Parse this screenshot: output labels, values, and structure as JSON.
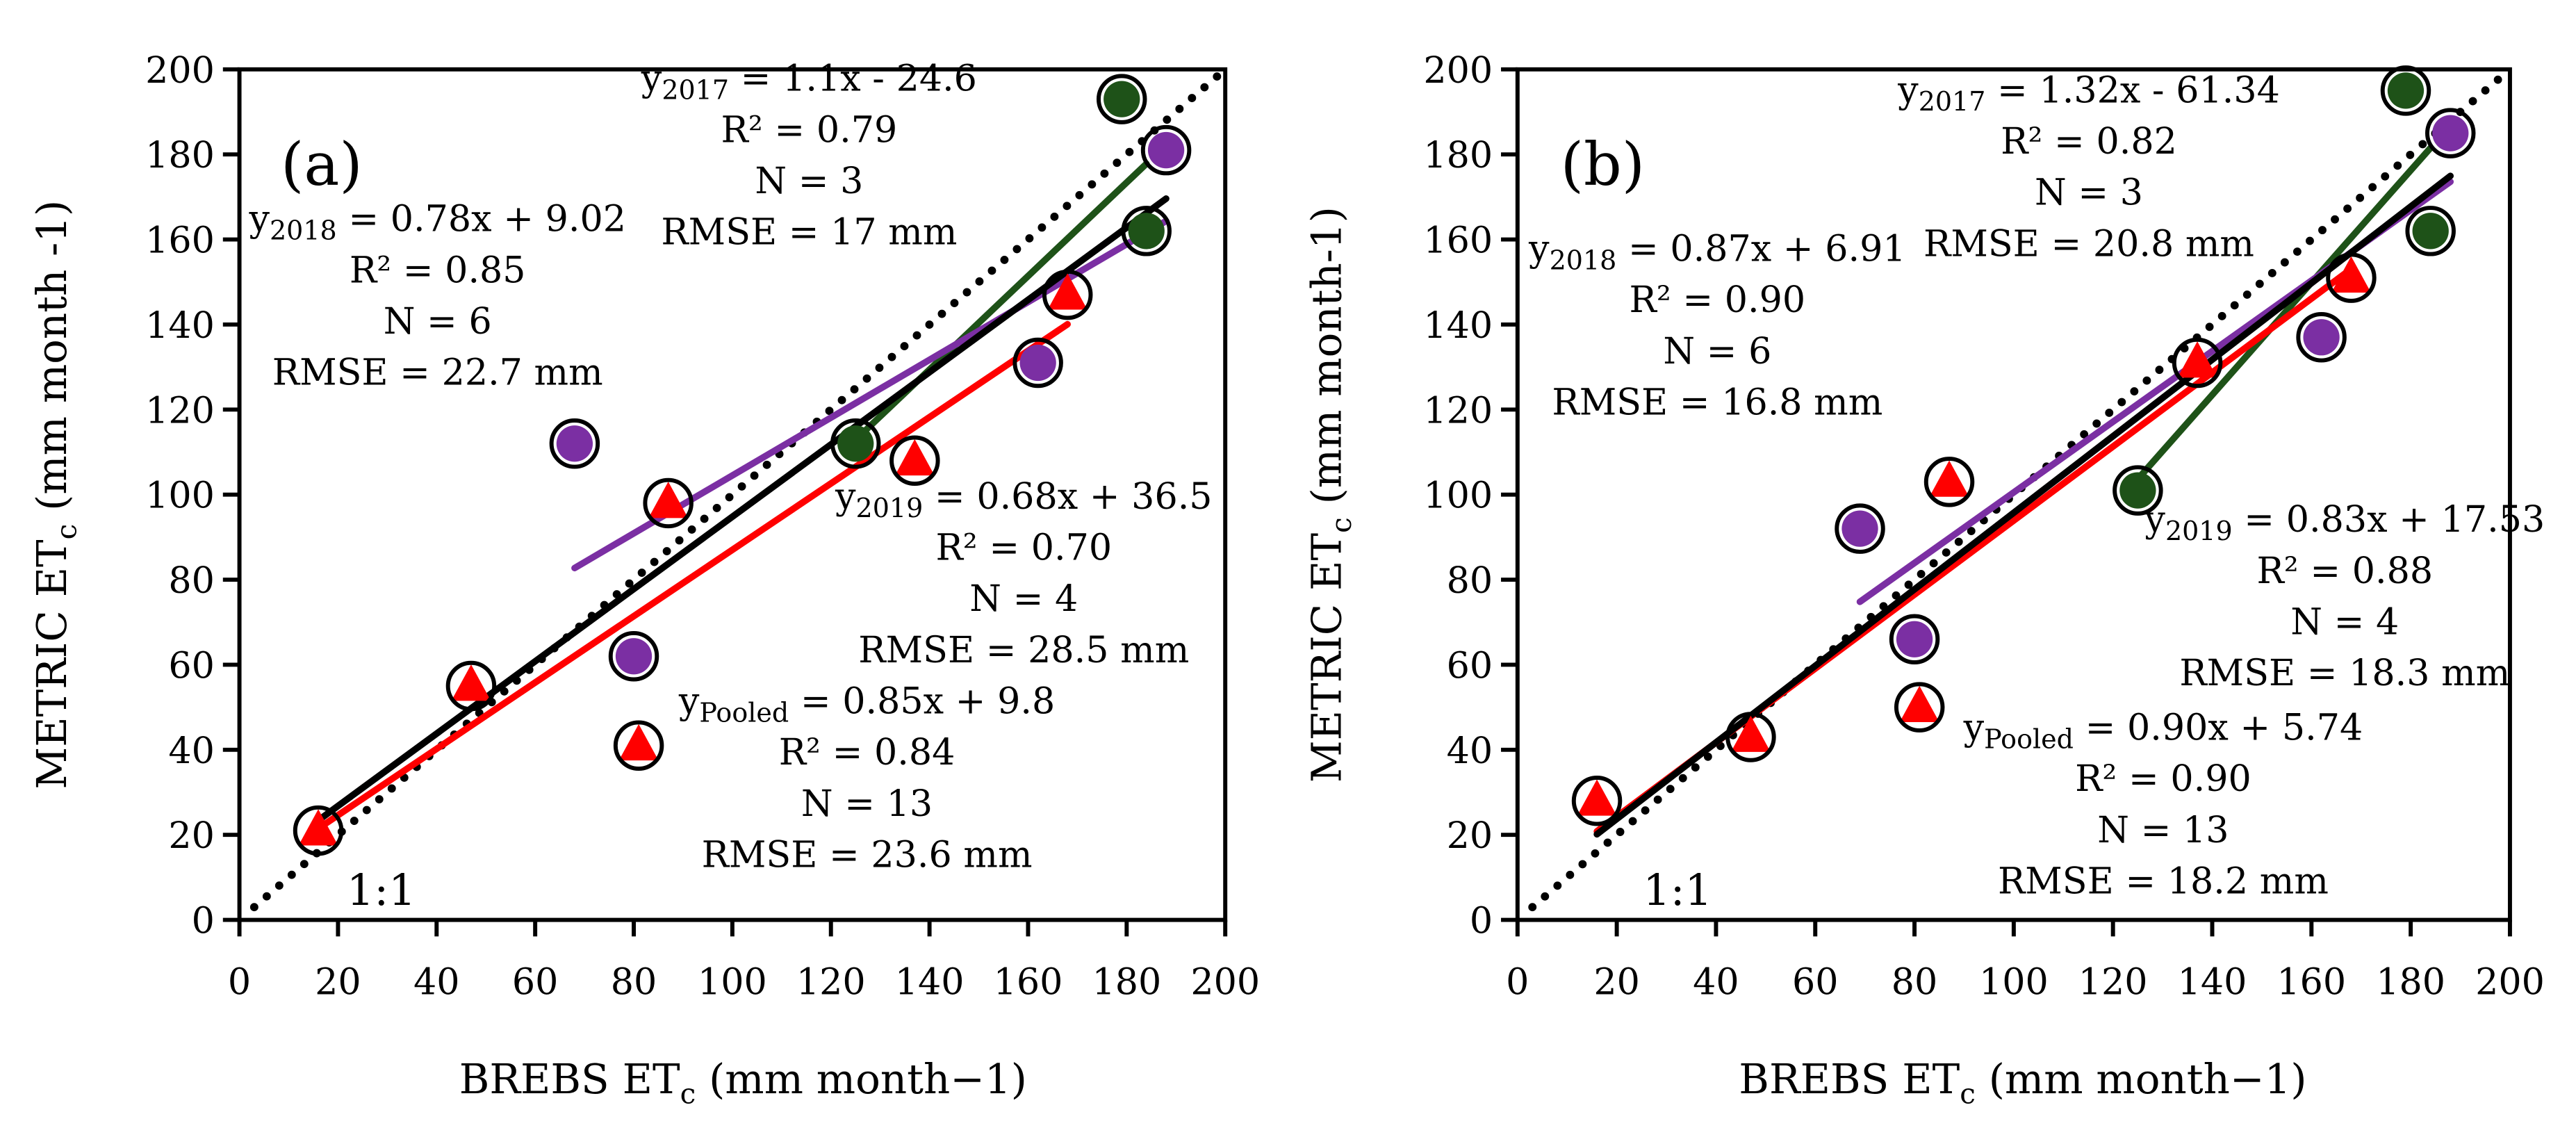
{
  "colors": {
    "y2017": "#1e5218",
    "y2018": "#ff0000",
    "y2019": "#7b2fa3",
    "pooled": "#000000"
  },
  "chart_data": [
    {
      "type": "scatter",
      "panel_label": "(a)",
      "xlabel": {
        "main": "BREBS ET",
        "sub": "c",
        "unit": " (mm month−1)"
      },
      "ylabel": {
        "main": "METRIC ET",
        "sub": "c",
        "unit": " (mm month -1)"
      },
      "xlim": [
        0,
        200
      ],
      "ylim": [
        0,
        200
      ],
      "xticks": [
        "0",
        "20",
        "40",
        "60",
        "80",
        "100",
        "120",
        "140",
        "160",
        "180",
        "200"
      ],
      "yticks": [
        "0",
        "20",
        "40",
        "60",
        "80",
        "100",
        "120",
        "140",
        "160",
        "180",
        "200"
      ],
      "one_to_one_label": "1:1",
      "series": [
        {
          "name": "2017",
          "marker": "circle",
          "points": [
            [
              125,
              112
            ],
            [
              179,
              193
            ],
            [
              184,
              162
            ]
          ],
          "fit": {
            "slope": 1.1,
            "intercept": -24.6,
            "xrange": [
              125,
              184
            ]
          },
          "eq": {
            "y": "y",
            "sub": "2017",
            "rest": " = 1.1x - 24.6"
          },
          "r2": "R² = 0.79",
          "n": "N = 3",
          "rmse": "RMSE = 17 mm"
        },
        {
          "name": "2018",
          "marker": "triangle",
          "points": [
            [
              16,
              21
            ],
            [
              47,
              55
            ],
            [
              87,
              98
            ],
            [
              81,
              41
            ],
            [
              137,
              108
            ],
            [
              168,
              147
            ]
          ],
          "fit": {
            "slope": 0.78,
            "intercept": 9.02,
            "xrange": [
              16,
              168
            ]
          },
          "eq": {
            "y": "y",
            "sub": "2018",
            "rest": " = 0.78x + 9.02"
          },
          "r2": "R² = 0.85",
          "n": "N = 6",
          "rmse": "RMSE = 22.7 mm"
        },
        {
          "name": "2019",
          "marker": "circle",
          "points": [
            [
              68,
              112
            ],
            [
              80,
              62
            ],
            [
              162,
              131
            ],
            [
              188,
              181
            ]
          ],
          "fit": {
            "slope": 0.68,
            "intercept": 36.5,
            "xrange": [
              68,
              188
            ]
          },
          "eq": {
            "y": "y",
            "sub": "2019",
            "rest": " = 0.68x + 36.5"
          },
          "r2": "R² = 0.70",
          "n": "N = 4",
          "rmse": "RMSE = 28.5 mm"
        },
        {
          "name": "Pooled",
          "marker": "none",
          "points": [],
          "fit": {
            "slope": 0.85,
            "intercept": 9.8,
            "xrange": [
              16,
              188
            ]
          },
          "eq": {
            "y": "y",
            "sub": "Pooled",
            "rest": " = 0.85x + 9.8"
          },
          "r2": "R² = 0.84",
          "n": "N = 13",
          "rmse": "RMSE = 23.6 mm"
        }
      ]
    },
    {
      "type": "scatter",
      "panel_label": "(b)",
      "xlabel": {
        "main": "BREBS ET",
        "sub": "c",
        "unit": " (mm month−1)"
      },
      "ylabel": {
        "main": "METRIC  ET",
        "sub": "c",
        "unit": " (mm month-1)"
      },
      "xlim": [
        0,
        200
      ],
      "ylim": [
        0,
        200
      ],
      "xticks": [
        "0",
        "20",
        "40",
        "60",
        "80",
        "100",
        "120",
        "140",
        "160",
        "180",
        "200"
      ],
      "yticks": [
        "0",
        "20",
        "40",
        "60",
        "80",
        "100",
        "120",
        "140",
        "160",
        "180",
        "200"
      ],
      "one_to_one_label": "1:1",
      "series": [
        {
          "name": "2017",
          "marker": "circle",
          "points": [
            [
              125,
              101
            ],
            [
              179,
              195
            ],
            [
              184,
              162
            ]
          ],
          "fit": {
            "slope": 1.32,
            "intercept": -61.34,
            "xrange": [
              125,
              184
            ]
          },
          "eq": {
            "y": "y",
            "sub": "2017",
            "rest": " = 1.32x - 61.34"
          },
          "r2": "R² = 0.82",
          "n": "N = 3",
          "rmse": "RMSE = 20.8 mm"
        },
        {
          "name": "2018",
          "marker": "triangle",
          "points": [
            [
              16,
              28
            ],
            [
              47,
              43
            ],
            [
              87,
              103
            ],
            [
              81,
              50
            ],
            [
              137,
              131
            ],
            [
              168,
              151
            ]
          ],
          "fit": {
            "slope": 0.87,
            "intercept": 6.91,
            "xrange": [
              16,
              168
            ]
          },
          "eq": {
            "y": "y",
            "sub": "2018",
            "rest": " = 0.87x + 6.91"
          },
          "r2": "R² = 0.90",
          "n": "N = 6",
          "rmse": "RMSE = 16.8 mm"
        },
        {
          "name": "2019",
          "marker": "circle",
          "points": [
            [
              69,
              92
            ],
            [
              80,
              66
            ],
            [
              162,
              137
            ],
            [
              188,
              185
            ]
          ],
          "fit": {
            "slope": 0.83,
            "intercept": 17.53,
            "xrange": [
              69,
              188
            ]
          },
          "eq": {
            "y": "y",
            "sub": "2019",
            "rest": " = 0.83x + 17.53"
          },
          "r2": "R² = 0.88",
          "n": "N = 4",
          "rmse": "RMSE = 18.3 mm"
        },
        {
          "name": "Pooled",
          "marker": "none",
          "points": [],
          "fit": {
            "slope": 0.9,
            "intercept": 5.74,
            "xrange": [
              16,
              188
            ]
          },
          "eq": {
            "y": "y",
            "sub": "Pooled",
            "rest": " = 0.90x + 5.74"
          },
          "r2": "R² = 0.90",
          "n": "N = 13",
          "rmse": "RMSE = 18.2 mm"
        }
      ]
    }
  ]
}
